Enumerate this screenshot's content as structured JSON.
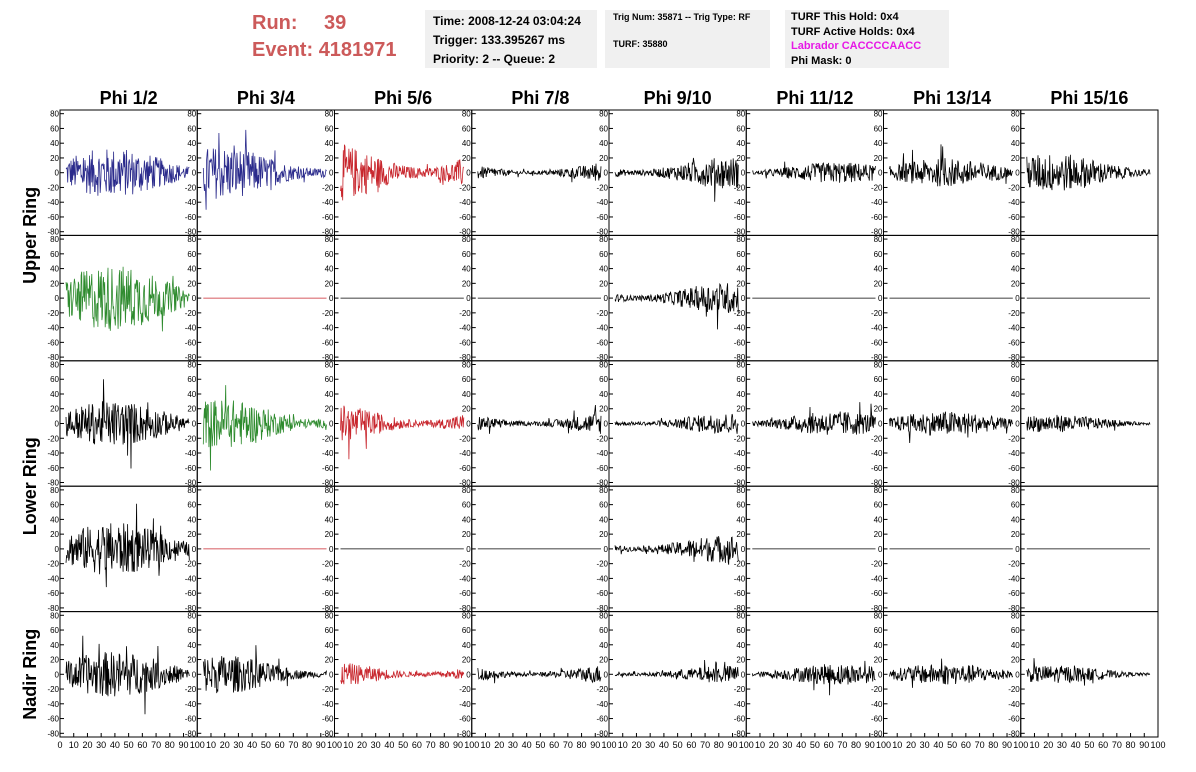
{
  "run": {
    "run_label": "Run:",
    "run_value": "39",
    "event_label": "Event:",
    "event_value": "4181971"
  },
  "info_panel": {
    "time": "Time: 2008-12-24 03:04:24",
    "trigger": "Trigger: 133.395267 ms",
    "priority": "Priority: 2 -- Queue: 2"
  },
  "trig_panel": {
    "trig": "Trig Num: 35871 -- Trig Type: RF",
    "turf": "TURF: 35880"
  },
  "turf_panel": {
    "this_hold": "TURF This Hold: 0x4",
    "active_holds": "TURF Active Holds: 0x4",
    "labrador": "Labrador CACCCCAACC",
    "phi_mask": "Phi Mask: 0"
  },
  "columns": [
    "Phi 1/2",
    "Phi 3/4",
    "Phi 5/6",
    "Phi 7/8",
    "Phi 9/10",
    "Phi 11/12",
    "Phi 13/14",
    "Phi 15/16"
  ],
  "ring_labels": [
    "Upper Ring",
    "Lower Ring",
    "Nadir Ring"
  ],
  "colors": {
    "blue": "#2b2b8c",
    "red": "#c8262d",
    "green": "#2e8b2e",
    "black": "#000000",
    "run_text": "#cc5a5a",
    "labrador": "#e619e6"
  },
  "chart_data": {
    "type": "line",
    "y_ticks": [
      "80",
      "60",
      "40",
      "20",
      "0",
      "-20",
      "-40",
      "-60",
      "-80"
    ],
    "x_ticks": [
      "0",
      "10",
      "20",
      "30",
      "40",
      "50",
      "60",
      "70",
      "80",
      "90",
      "100"
    ],
    "ylim": [
      -85,
      85
    ],
    "xlim": [
      0,
      100
    ],
    "rows": [
      {
        "amps": [
          28,
          30,
          34,
          12,
          18,
          12,
          16,
          22
        ],
        "colors": [
          "blue",
          "blue",
          "red",
          "black",
          "black",
          "black",
          "black",
          "black"
        ]
      },
      {
        "amps": [
          38,
          0,
          0,
          0,
          18,
          0,
          0,
          0
        ],
        "colors": [
          "green",
          "red",
          "black",
          "black",
          "black",
          "black",
          "black",
          "black"
        ]
      },
      {
        "amps": [
          26,
          28,
          22,
          14,
          12,
          14,
          14,
          10
        ],
        "colors": [
          "black",
          "green",
          "red",
          "black",
          "black",
          "black",
          "black",
          "black"
        ]
      },
      {
        "amps": [
          30,
          0,
          0,
          0,
          16,
          0,
          0,
          0
        ],
        "colors": [
          "black",
          "red",
          "black",
          "black",
          "black",
          "black",
          "black",
          "black"
        ]
      },
      {
        "amps": [
          26,
          22,
          14,
          12,
          10,
          12,
          12,
          10
        ],
        "colors": [
          "black",
          "black",
          "red",
          "black",
          "black",
          "black",
          "black",
          "black"
        ]
      }
    ]
  }
}
